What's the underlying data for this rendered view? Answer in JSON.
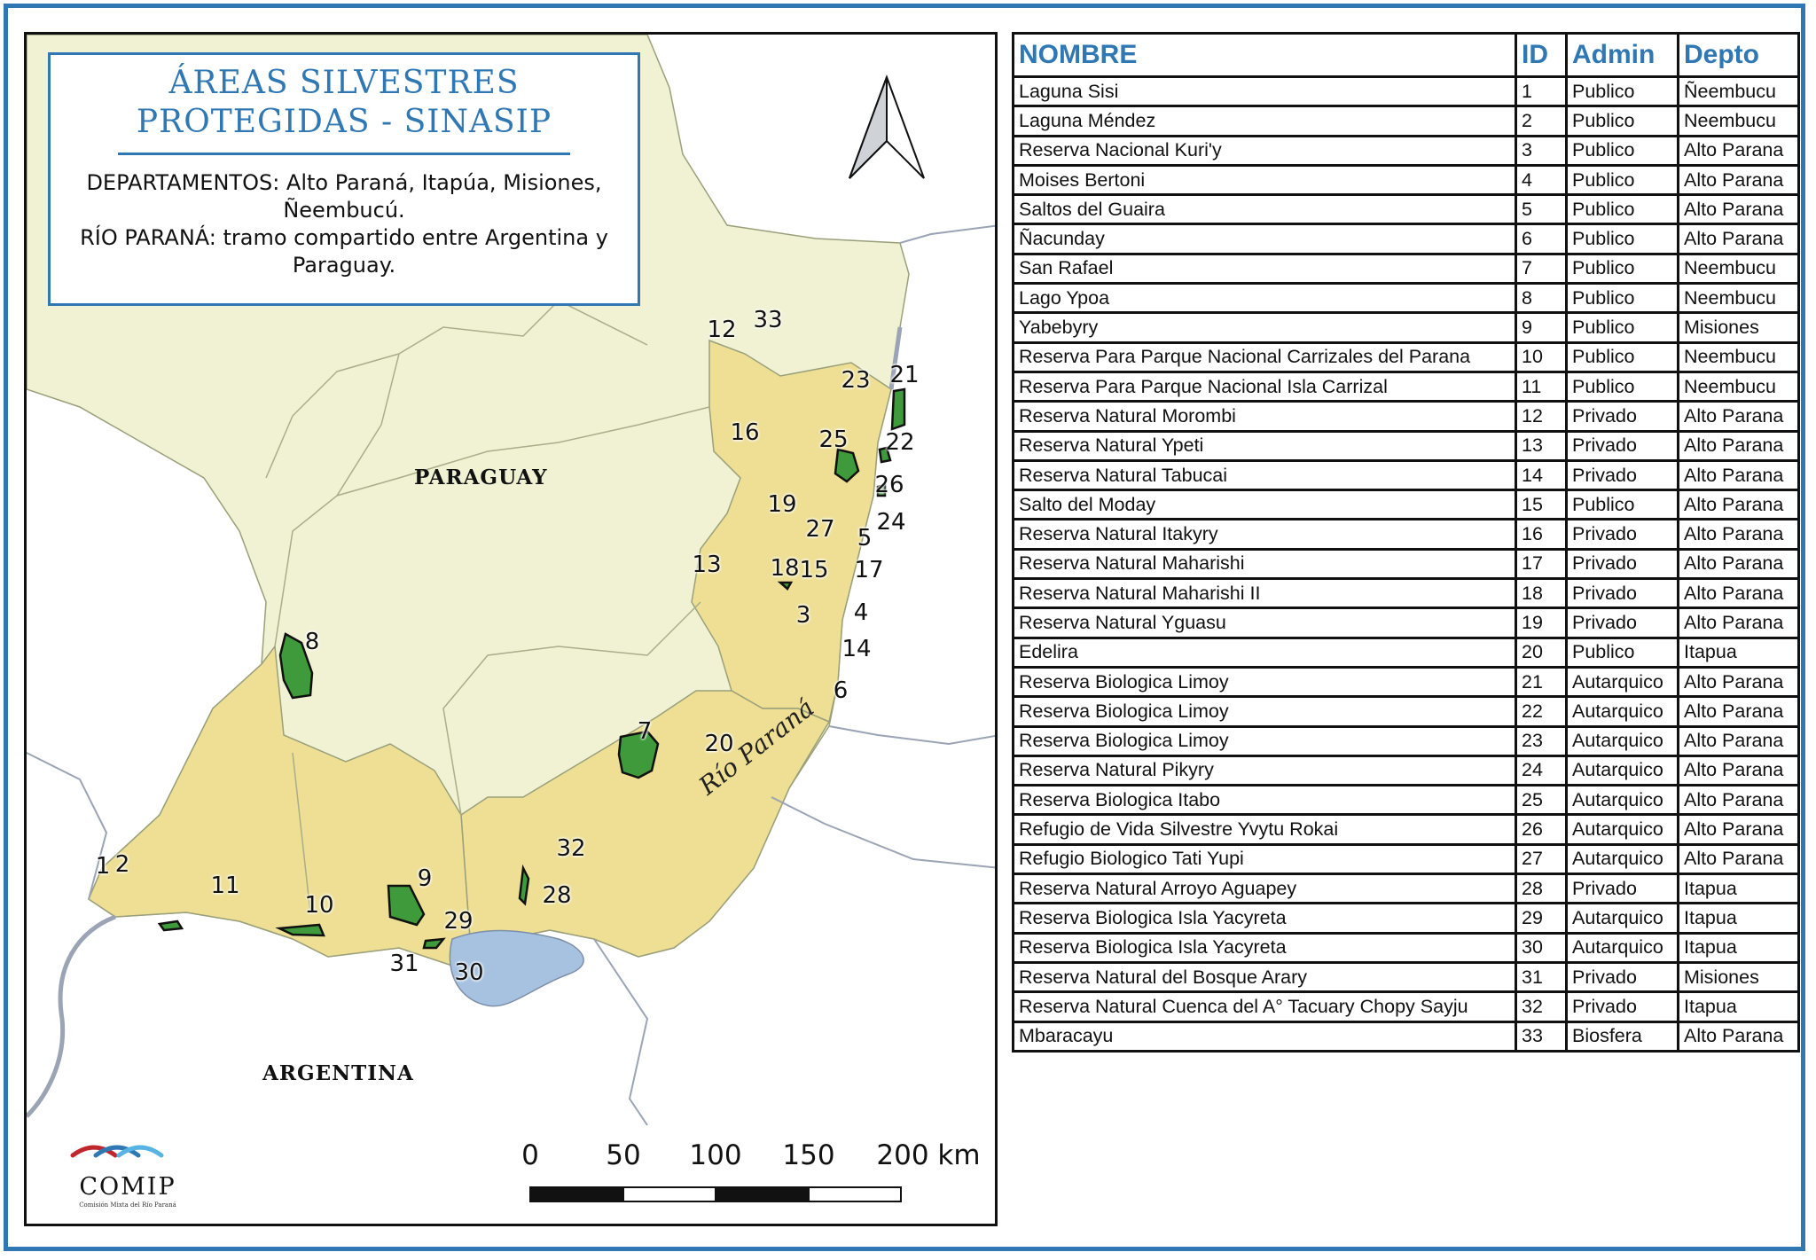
{
  "map": {
    "title_line1": "ÁREAS SILVESTRES",
    "title_line2": "PROTEGIDAS - SINASIP",
    "subtitle_line1": "DEPARTAMENTOS: Alto Paraná, Itapúa, Misiones,",
    "subtitle_line2": "Ñeembucú.",
    "subtitle_line3": "RÍO PARANÁ: tramo compartido entre Argentina y",
    "subtitle_line4": "Paraguay.",
    "country_paraguay": "PARAGUAY",
    "country_argentina": "ARGENTINA",
    "river_label": "Río Paraná",
    "scale": [
      "0",
      "50",
      "100",
      "150",
      "200 km"
    ],
    "logo_text": "COMIP",
    "logo_subtext": "Comisión Mixta del Río Paraná",
    "area_labels": [
      "1",
      "2",
      "3",
      "4",
      "5",
      "6",
      "7",
      "8",
      "9",
      "10",
      "11",
      "12",
      "13",
      "14",
      "15",
      "16",
      "17",
      "18",
      "19",
      "20",
      "21",
      "22",
      "23",
      "24",
      "25",
      "26",
      "27",
      "28",
      "29",
      "30",
      "31",
      "32",
      "33"
    ],
    "colors": {
      "accent": "#2f78b4",
      "paraguay_land": "#f1f2d4",
      "departments": "#eedf94",
      "protected_area": "#3e9a3a",
      "water": "#a7c2e0"
    }
  },
  "table": {
    "headers": [
      "NOMBRE",
      "ID",
      "Admin",
      "Depto"
    ],
    "rows": [
      [
        "Laguna Sisi",
        "1",
        "Publico",
        "Ñeembucu"
      ],
      [
        "Laguna Méndez",
        "2",
        "Publico",
        "Neembucu"
      ],
      [
        "Reserva Nacional Kuri'y",
        "3",
        "Publico",
        "Alto Parana"
      ],
      [
        "Moises Bertoni",
        "4",
        "Publico",
        "Alto Parana"
      ],
      [
        "Saltos del Guaira",
        "5",
        "Publico",
        "Alto Parana"
      ],
      [
        "Ñacunday",
        "6",
        "Publico",
        "Alto Parana"
      ],
      [
        "San Rafael",
        "7",
        "Publico",
        "Neembucu"
      ],
      [
        "Lago Ypoa",
        "8",
        "Publico",
        "Neembucu"
      ],
      [
        "Yabebyry",
        "9",
        "Publico",
        "Misiones"
      ],
      [
        "Reserva Para Parque Nacional Carrizales del Parana",
        "10",
        "Publico",
        "Neembucu"
      ],
      [
        "Reserva Para Parque Nacional Isla Carrizal",
        "11",
        "Publico",
        "Neembucu"
      ],
      [
        "Reserva Natural Morombi",
        "12",
        "Privado",
        "Alto Parana"
      ],
      [
        "Reserva Natural Ypeti",
        "13",
        "Privado",
        "Alto Parana"
      ],
      [
        "Reserva Natural Tabucai",
        "14",
        "Privado",
        "Alto Parana"
      ],
      [
        "Salto del Moday",
        "15",
        "Publico",
        "Alto Parana"
      ],
      [
        "Reserva Natural Itakyry",
        "16",
        "Privado",
        "Alto Parana"
      ],
      [
        "Reserva Natural Maharishi",
        "17",
        "Privado",
        "Alto Parana"
      ],
      [
        "Reserva Natural Maharishi II",
        "18",
        "Privado",
        "Alto Parana"
      ],
      [
        "Reserva Natural Yguasu",
        "19",
        "Privado",
        "Alto Parana"
      ],
      [
        "Edelira",
        "20",
        "Publico",
        "Itapua"
      ],
      [
        "Reserva Biologica Limoy",
        "21",
        "Autarquico",
        "Alto Parana"
      ],
      [
        "Reserva Biologica Limoy",
        "22",
        "Autarquico",
        "Alto Parana"
      ],
      [
        "Reserva Biologica Limoy",
        "23",
        "Autarquico",
        "Alto Parana"
      ],
      [
        "Reserva Natural Pikyry",
        "24",
        "Autarquico",
        "Alto Parana"
      ],
      [
        "Reserva Biologica Itabo",
        "25",
        "Autarquico",
        "Alto Parana"
      ],
      [
        "Refugio de Vida Silvestre Yvytu Rokai",
        "26",
        "Autarquico",
        "Alto Parana"
      ],
      [
        "Refugio Biologico Tati Yupi",
        "27",
        "Autarquico",
        "Alto Parana"
      ],
      [
        "Reserva Natural Arroyo Aguapey",
        "28",
        "Privado",
        "Itapua"
      ],
      [
        "Reserva Biologica Isla Yacyreta",
        "29",
        "Autarquico",
        "Itapua"
      ],
      [
        "Reserva Biologica Isla Yacyreta",
        "30",
        "Autarquico",
        "Itapua"
      ],
      [
        "Reserva Natural del Bosque Arary",
        "31",
        "Privado",
        "Misiones"
      ],
      [
        "Reserva Natural Cuenca  del A° Tacuary Chopy Sayju",
        "32",
        "Privado",
        "Itapua"
      ],
      [
        "Mbaracayu",
        "33",
        "Biosfera",
        "Alto Parana"
      ]
    ]
  }
}
